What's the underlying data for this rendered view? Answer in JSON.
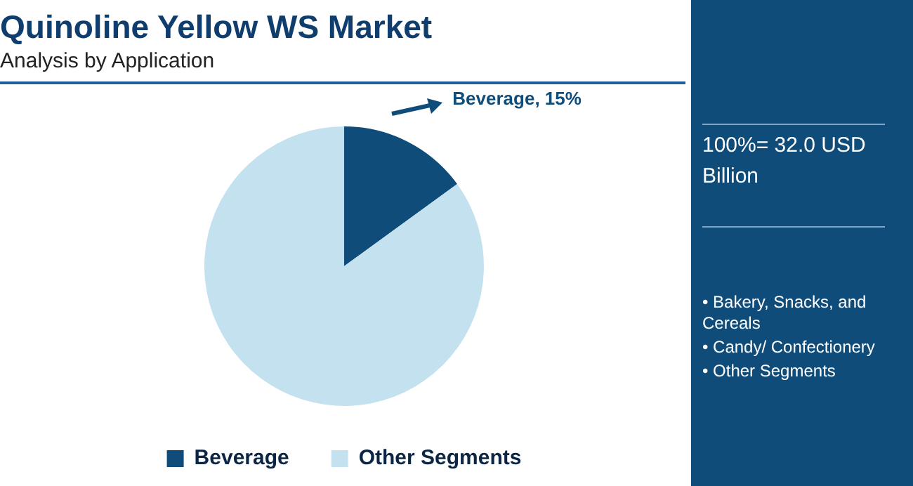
{
  "chart_data": {
    "type": "pie",
    "title": "Quinoline Yellow WS Market",
    "subtitle": "Analysis by Application",
    "categories": [
      "Beverage",
      "Other Segments"
    ],
    "values": [
      15,
      85
    ],
    "colors": [
      "#0f4c7a",
      "#c4e1f0"
    ],
    "value_labels": [
      "Beverage, 15%",
      null
    ],
    "legend": "bottom",
    "annotations": [
      "100%= 32.0 USD Billion",
      "• Bakery, Snacks, and Cereals",
      "• Candy/ Confectionery",
      "• Other Segments"
    ]
  }
}
